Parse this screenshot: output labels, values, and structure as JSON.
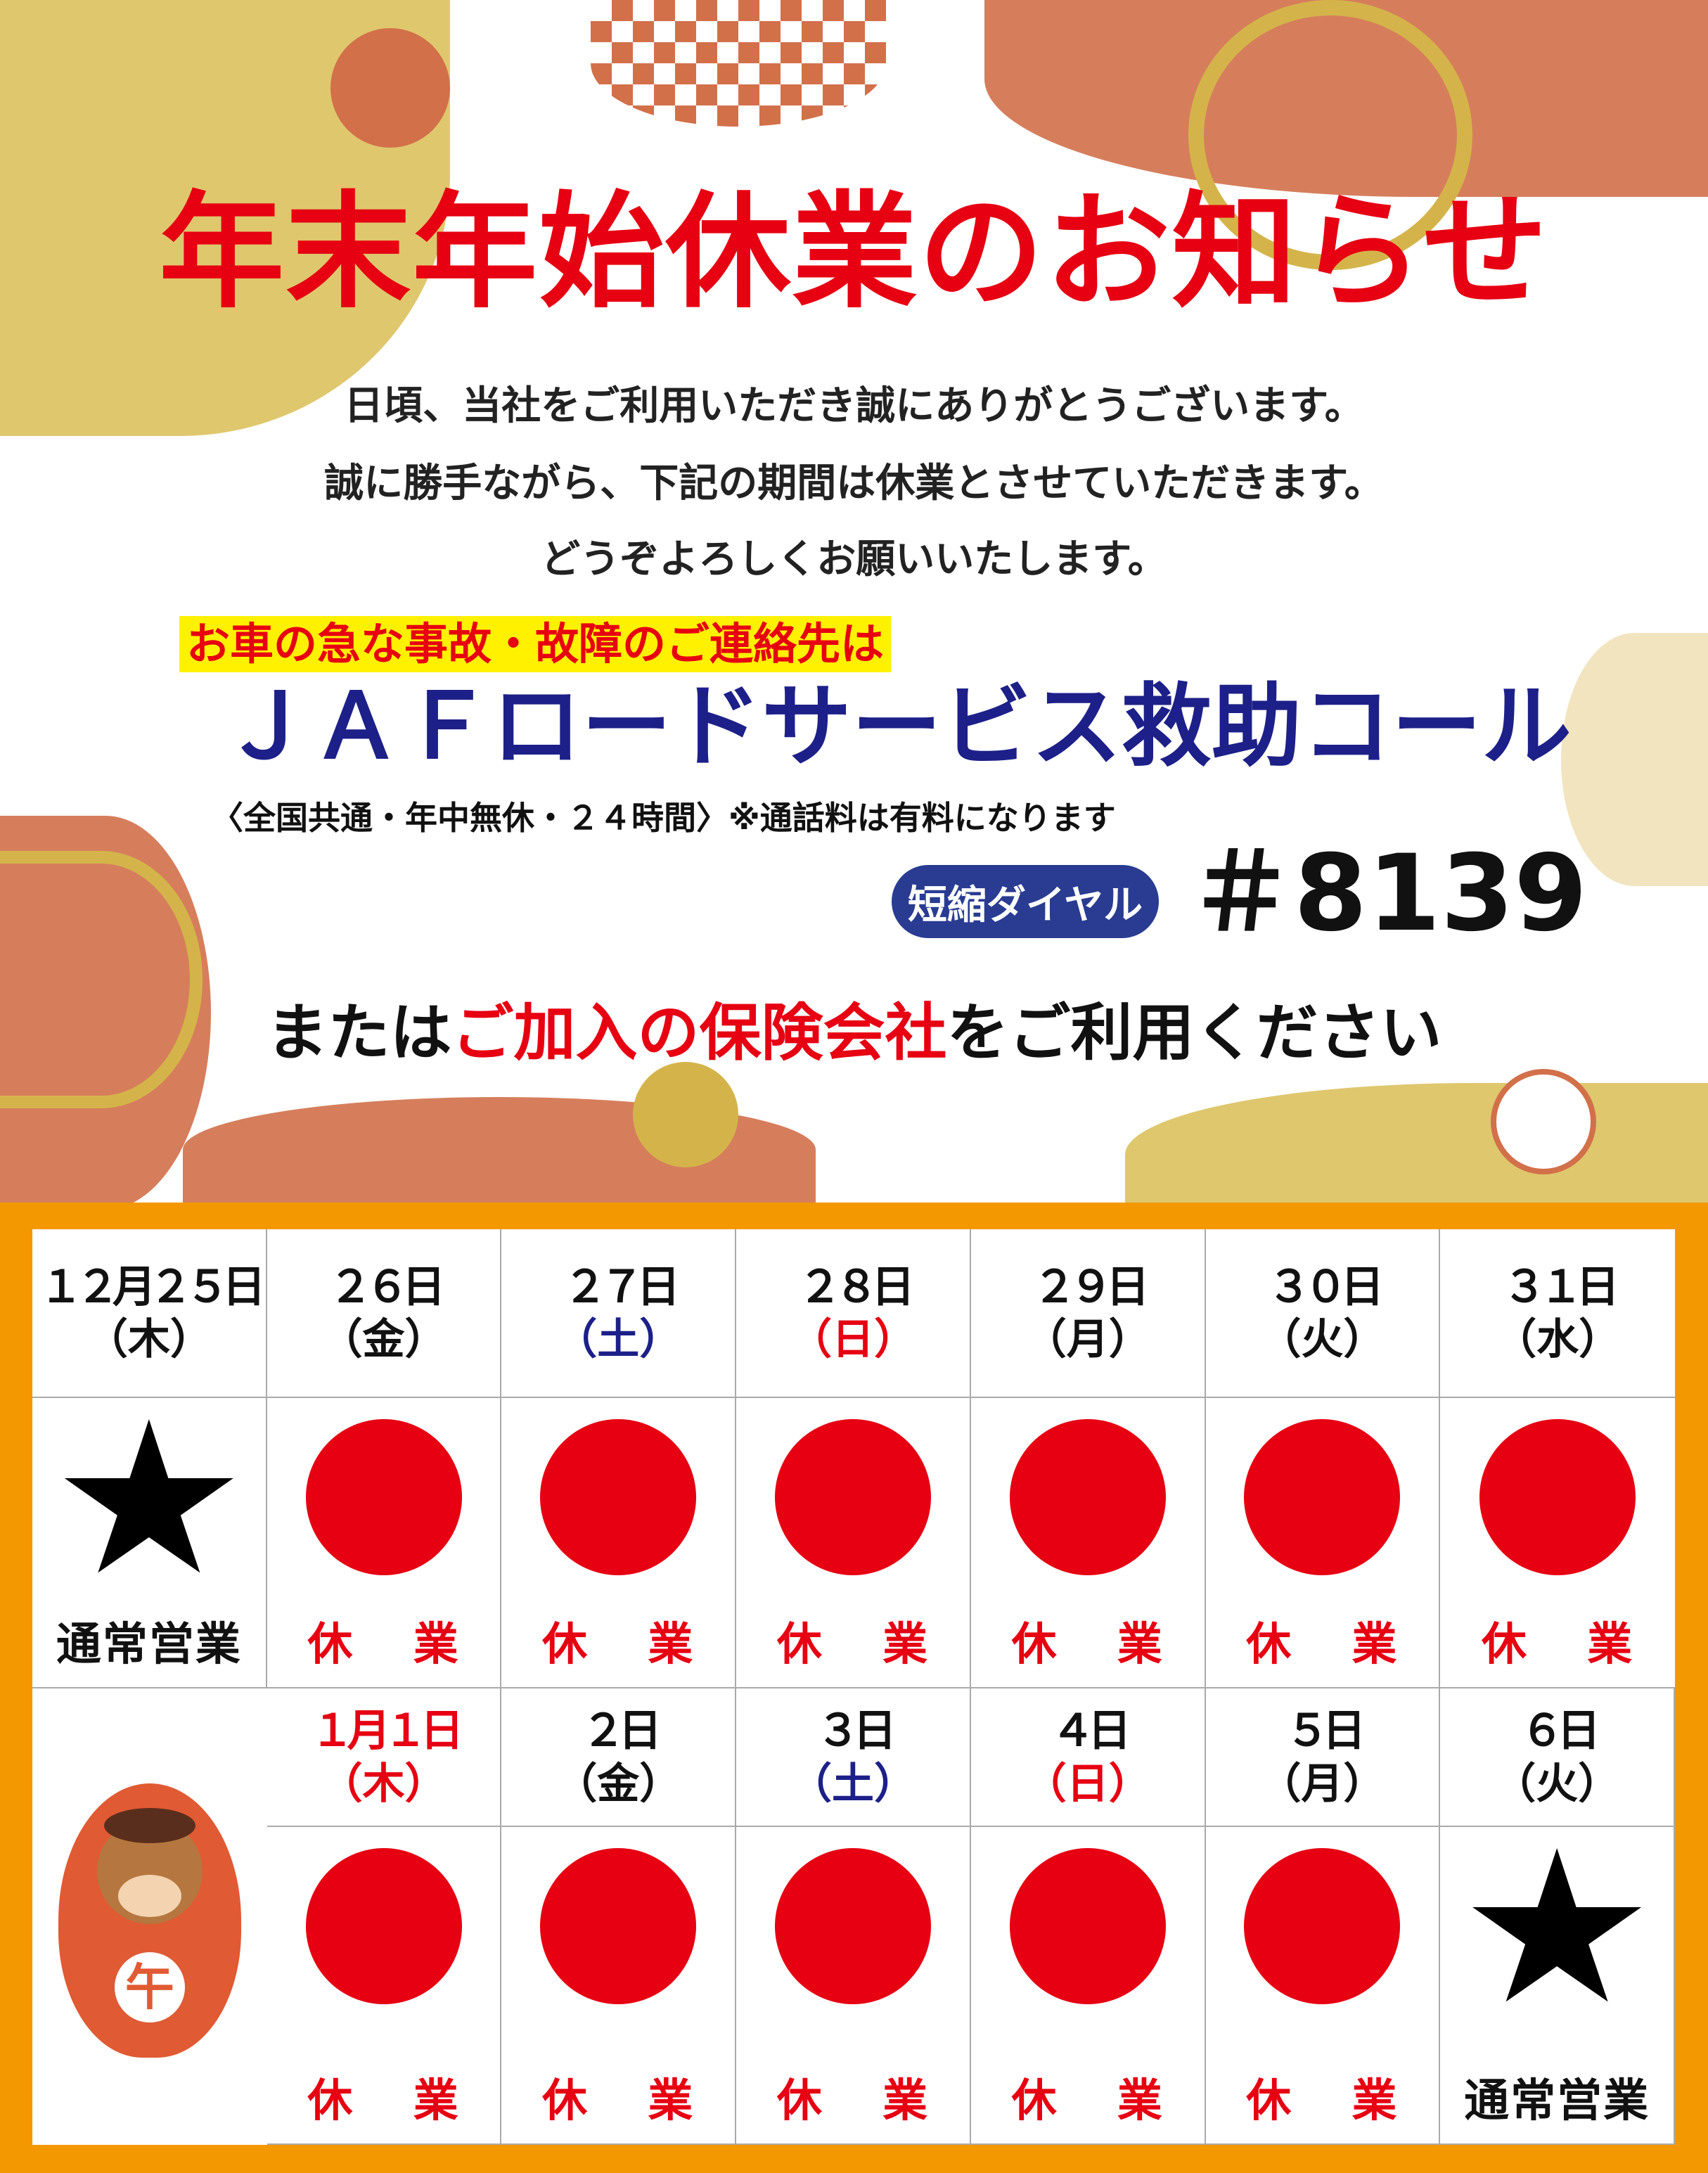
{
  "colors": {
    "title_red": "#e60012",
    "navy": "#1d2088",
    "badge_blue": "#293c92",
    "frame_orange": "#f39800",
    "highlight_yellow": "#fff100",
    "gold": "#d4b44a",
    "terracotta": "#d2704a"
  },
  "title": "年末年始休業のお知らせ",
  "intro": [
    "日頃、当社をご利用いただき誠にありがとうございます。",
    "誠に勝手ながら、下記の期間は休業とさせていただきます。",
    "どうぞよろしくお願いいたします。"
  ],
  "contact": {
    "highlight": "お車の急な事故・故障のご連絡先は",
    "service": "ＪＡＦロードサービス救助コール",
    "note": "〈全国共通・年中無休・２４時間〉※通話料は有料になります",
    "badge": "短縮ダイヤル",
    "dial": "＃8139"
  },
  "closing": {
    "pre": "または",
    "highlight": "ご加入の保険会社",
    "post": "をご利用ください"
  },
  "calendar": {
    "row1": [
      {
        "date": "１２月２５日",
        "dow": "（木）",
        "dow_color": "#111",
        "date_color": "#111",
        "mark": "star",
        "status": "通常営業"
      },
      {
        "date": "２６日",
        "dow": "（金）",
        "dow_color": "#111",
        "date_color": "#111",
        "mark": "circle",
        "status": "休 業"
      },
      {
        "date": "２７日",
        "dow": "（土）",
        "dow_color": "#1d2088",
        "date_color": "#111",
        "mark": "circle",
        "status": "休 業"
      },
      {
        "date": "２８日",
        "dow": "（日）",
        "dow_color": "#e60012",
        "date_color": "#111",
        "mark": "circle",
        "status": "休 業"
      },
      {
        "date": "２９日",
        "dow": "（月）",
        "dow_color": "#111",
        "date_color": "#111",
        "mark": "circle",
        "status": "休 業"
      },
      {
        "date": "３０日",
        "dow": "（火）",
        "dow_color": "#111",
        "date_color": "#111",
        "mark": "circle",
        "status": "休 業"
      },
      {
        "date": "３１日",
        "dow": "（水）",
        "dow_color": "#111",
        "date_color": "#111",
        "mark": "circle",
        "status": "休 業"
      }
    ],
    "row2": [
      {
        "date": "１月１日",
        "dow": "（木）",
        "dow_color": "#e60012",
        "date_color": "#e60012",
        "mark": "circle",
        "status": "休 業"
      },
      {
        "date": "２日",
        "dow": "（金）",
        "dow_color": "#111",
        "date_color": "#111",
        "mark": "circle",
        "status": "休 業"
      },
      {
        "date": "３日",
        "dow": "（土）",
        "dow_color": "#1d2088",
        "date_color": "#111",
        "mark": "circle",
        "status": "休 業"
      },
      {
        "date": "４日",
        "dow": "（日）",
        "dow_color": "#e60012",
        "date_color": "#111",
        "mark": "circle",
        "status": "休 業"
      },
      {
        "date": "５日",
        "dow": "（月）",
        "dow_color": "#111",
        "date_color": "#111",
        "mark": "circle",
        "status": "休 業"
      },
      {
        "date": "６日",
        "dow": "（火）",
        "dow_color": "#111",
        "date_color": "#111",
        "mark": "star",
        "status": "通常営業"
      }
    ],
    "daruma_char": "午"
  }
}
